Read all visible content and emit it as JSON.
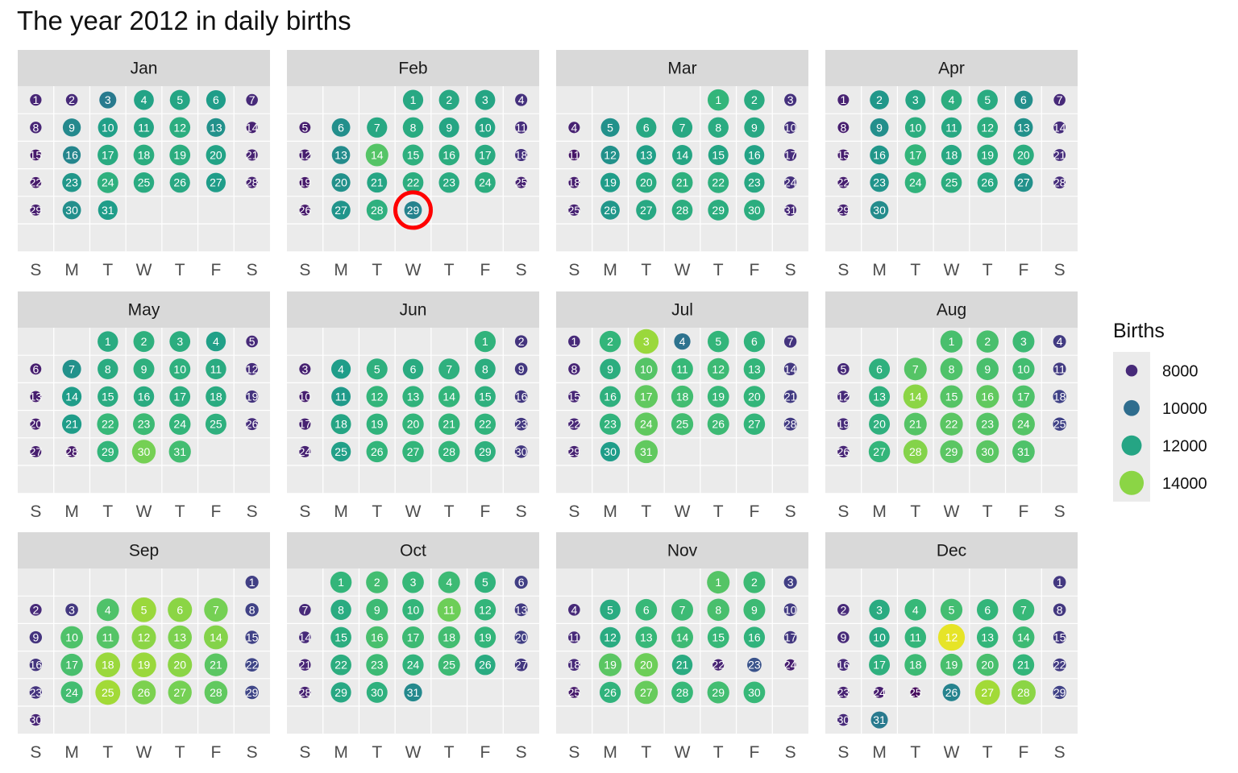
{
  "chart_data": {
    "type": "heatmap",
    "title": "The year 2012 in daily births",
    "year": 2012,
    "first_weekday_jan1": 0,
    "months": [
      "Jan",
      "Feb",
      "Mar",
      "Apr",
      "May",
      "Jun",
      "Jul",
      "Aug",
      "Sep",
      "Oct",
      "Nov",
      "Dec"
    ],
    "weekdays": [
      "S",
      "M",
      "T",
      "W",
      "T",
      "F",
      "S"
    ],
    "legend": {
      "title": "Births",
      "position": "right",
      "labels": [
        "8000",
        "10000",
        "12000",
        "14000"
      ],
      "values": [
        8000,
        10000,
        12000,
        14000
      ]
    },
    "color_scale": {
      "name": "viridis",
      "domain": [
        7000,
        15500
      ],
      "stops": [
        "#440154",
        "#482878",
        "#3e4989",
        "#31688e",
        "#26828e",
        "#1f9e89",
        "#35b779",
        "#6ece58",
        "#b5de2b",
        "#fde725"
      ]
    },
    "highlight": {
      "month": "Feb",
      "day": 29,
      "color": "#ff0000"
    },
    "births": {
      "Jan": [
        7900,
        8000,
        10500,
        11900,
        12000,
        11700,
        8000,
        7900,
        11000,
        11800,
        12000,
        12300,
        11300,
        7800,
        7600,
        10900,
        12200,
        12300,
        12300,
        11900,
        7800,
        7600,
        11500,
        12400,
        12200,
        12100,
        11700,
        7800,
        7700,
        11200,
        11700
      ],
      "Feb": [
        12100,
        12100,
        12000,
        8200,
        7700,
        11200,
        12100,
        12200,
        12000,
        12000,
        8100,
        7700,
        11100,
        13200,
        12400,
        12300,
        12200,
        8200,
        7600,
        11300,
        12000,
        12300,
        12200,
        12300,
        7800,
        7600,
        11400,
        12400,
        10800
      ],
      "Mar": [
        12600,
        12200,
        8200,
        7800,
        11300,
        12100,
        12100,
        12200,
        12100,
        8200,
        7500,
        11300,
        11800,
        12000,
        12000,
        11900,
        8100,
        7700,
        11700,
        12200,
        12400,
        12400,
        12100,
        8200,
        7800,
        11500,
        12100,
        12300,
        12300,
        12300,
        8000
      ],
      "Apr": [
        7800,
        11500,
        12000,
        12300,
        12200,
        11200,
        8000,
        7700,
        11200,
        12300,
        12100,
        12300,
        11300,
        8100,
        7700,
        11500,
        12600,
        12100,
        12300,
        12300,
        8100,
        7700,
        11400,
        12500,
        12300,
        12100,
        11300,
        8100,
        7800,
        11100
      ],
      "May": [
        12200,
        12400,
        12300,
        11800,
        8000,
        7700,
        11300,
        12200,
        12400,
        12400,
        12200,
        8100,
        7700,
        11700,
        12200,
        12200,
        12300,
        12200,
        8300,
        7700,
        11700,
        12700,
        12800,
        12600,
        12400,
        8100,
        7700,
        7600,
        12600,
        13700,
        12900
      ],
      "Jun": [
        12500,
        8300,
        7800,
        11700,
        12400,
        12200,
        12400,
        12300,
        8400,
        7700,
        11600,
        12600,
        12500,
        12600,
        12400,
        8400,
        7800,
        12000,
        12500,
        12600,
        12600,
        12500,
        8400,
        7800,
        11800,
        12600,
        12600,
        12600,
        12400,
        8400
      ],
      "Jul": [
        8000,
        12600,
        14200,
        10200,
        12600,
        12500,
        8300,
        7900,
        12300,
        13200,
        12700,
        12800,
        12600,
        8400,
        7900,
        12400,
        13400,
        12900,
        12700,
        12600,
        8500,
        7900,
        12500,
        13400,
        12900,
        12800,
        12600,
        8500,
        7800,
        11700,
        13400
      ],
      "Aug": [
        13000,
        13000,
        12800,
        8500,
        8000,
        12400,
        13200,
        13100,
        13000,
        12900,
        8500,
        8000,
        12400,
        14000,
        13200,
        13400,
        13100,
        8700,
        8000,
        12400,
        13200,
        13300,
        13200,
        13200,
        8700,
        7900,
        12600,
        13900,
        13300,
        13300,
        13100
      ],
      "Sep": [
        8600,
        8000,
        8400,
        13100,
        14200,
        14000,
        13700,
        8700,
        8300,
        13100,
        13200,
        14000,
        13800,
        13900,
        8700,
        8300,
        13000,
        14200,
        14200,
        14000,
        13300,
        8800,
        8300,
        12900,
        14300,
        13800,
        13700,
        13400,
        8800,
        7900
      ],
      "Oct": [
        12600,
        12900,
        12700,
        12800,
        12500,
        8600,
        8000,
        12200,
        12800,
        12600,
        13600,
        12600,
        8500,
        8000,
        12300,
        13000,
        12800,
        12900,
        12600,
        8600,
        7900,
        12300,
        12800,
        12500,
        12800,
        12200,
        8400,
        7800,
        12100,
        12400,
        11000
      ],
      "Nov": [
        13200,
        12800,
        8600,
        8000,
        12200,
        12700,
        12800,
        13000,
        12800,
        8500,
        8000,
        12200,
        12700,
        12800,
        12700,
        12500,
        8400,
        8000,
        13300,
        13600,
        12200,
        7800,
        9200,
        7700,
        7600,
        12500,
        13500,
        12700,
        12900,
        12700
      ],
      "Dec": [
        8400,
        8000,
        12200,
        12700,
        12900,
        12600,
        12700,
        8400,
        8000,
        12100,
        12600,
        15200,
        12600,
        12800,
        8400,
        8000,
        12400,
        12800,
        13000,
        13000,
        12600,
        8500,
        7800,
        7700,
        7200,
        10800,
        14300,
        14000,
        8700,
        8000,
        10500
      ]
    }
  }
}
